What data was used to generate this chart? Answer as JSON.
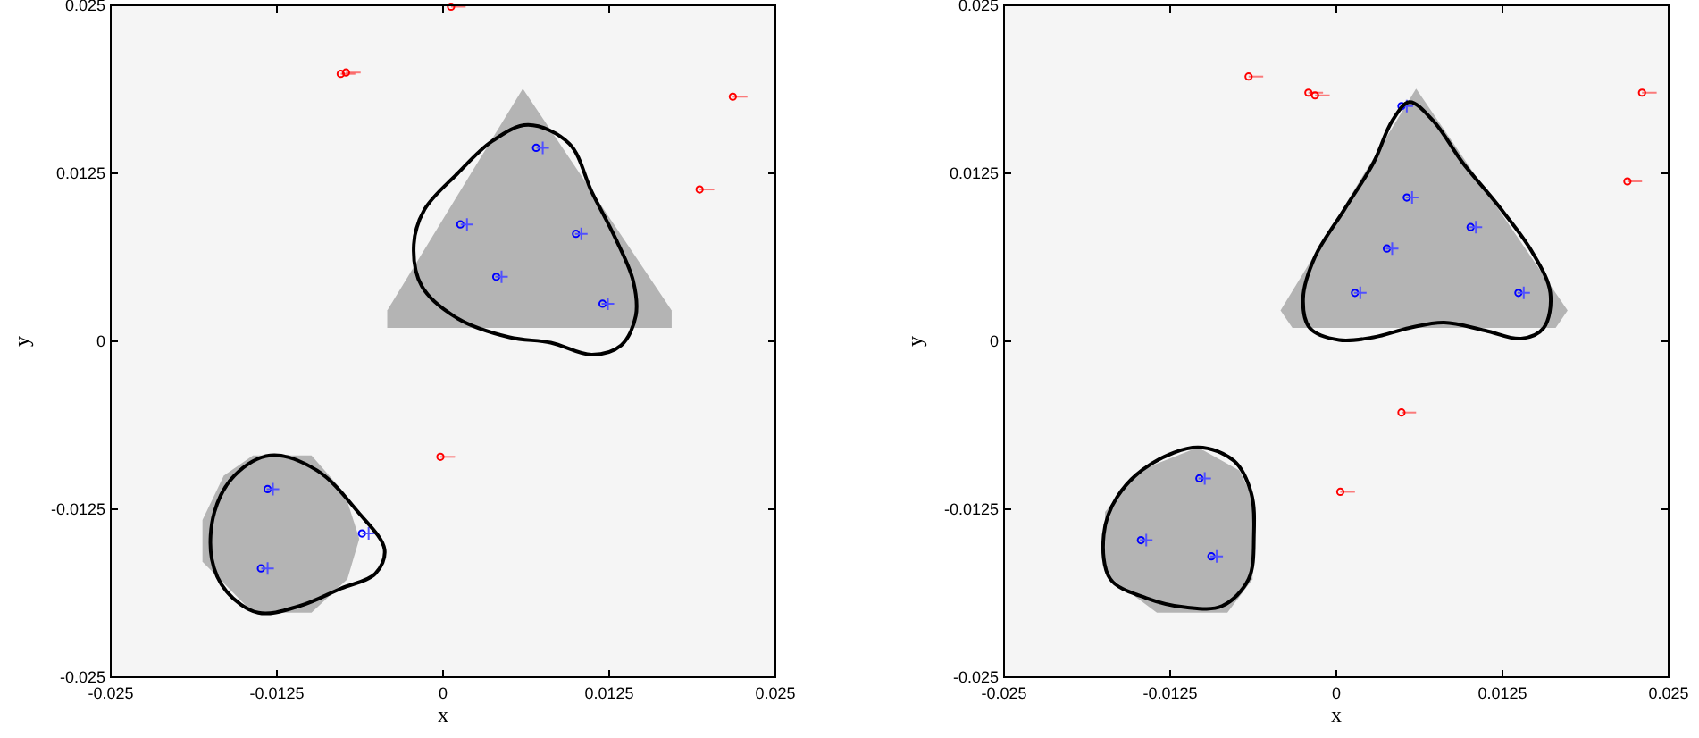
{
  "chart_data": [
    {
      "type": "scatter",
      "xlabel": "x",
      "ylabel": "y",
      "xlim": [
        -0.025,
        0.025
      ],
      "ylim": [
        -0.025,
        0.025
      ],
      "xticks": [
        -0.025,
        -0.0125,
        0,
        0.0125,
        0.025
      ],
      "yticks": [
        -0.025,
        -0.0125,
        0,
        0.0125,
        0.025
      ],
      "grid": false,
      "series": [
        {
          "type": "area",
          "color": "#b4b4b4",
          "x": [
            0.006,
            0.0172,
            0.0172,
            -0.0042,
            -0.0042
          ],
          "values": [
            0.0188,
            0.0023,
            0.001,
            0.001,
            0.0023
          ]
        },
        {
          "type": "area",
          "color": "#b4b4b4",
          "x": [
            -0.0143,
            -0.0099,
            -0.0074,
            -0.0063,
            -0.0072,
            -0.0099,
            -0.0143,
            -0.0181,
            -0.0181,
            -0.0165
          ],
          "values": [
            -0.0085,
            -0.0085,
            -0.0113,
            -0.0147,
            -0.0177,
            -0.0202,
            -0.0202,
            -0.0164,
            -0.0133,
            -0.01
          ]
        },
        {
          "marker": "circle",
          "color": "#ff0000",
          "x": [
            0.0006,
            -0.0077,
            -0.0073,
            0.0218,
            0.0193,
            -0.0002
          ],
          "values": [
            0.0249,
            0.0199,
            0.02,
            0.0182,
            0.0113,
            -0.0086
          ],
          "xerrors": [
            [
              0.0006,
              0.0017
            ],
            [
              -0.0077,
              -0.0066
            ],
            [
              -0.0073,
              -0.0062
            ],
            [
              0.0218,
              0.0229
            ],
            [
              0.0193,
              0.0204
            ],
            [
              -0.0002,
              0.0009
            ]
          ]
        },
        {
          "marker": "circle",
          "color": "#0000ff",
          "x": [
            0.007,
            0.0013,
            0.01,
            0.004,
            0.012,
            -0.0132,
            -0.0061,
            -0.0137
          ],
          "values": [
            0.0144,
            0.0087,
            0.008,
            0.0048,
            0.0028,
            -0.011,
            -0.0143,
            -0.0169
          ]
        },
        {
          "marker": "cross",
          "color": "#5050ff",
          "x": [
            0.0075,
            0.0018,
            0.0104,
            0.0044,
            0.0124,
            -0.0128,
            -0.0056,
            -0.0132
          ],
          "values": [
            0.0144,
            0.0087,
            0.008,
            0.0048,
            0.0028,
            -0.011,
            -0.0143,
            -0.0169
          ]
        }
      ]
    },
    {
      "type": "scatter",
      "xlabel": "x",
      "ylabel": "y",
      "xlim": [
        -0.025,
        0.025
      ],
      "ylim": [
        -0.025,
        0.025
      ],
      "xticks": [
        -0.025,
        -0.0125,
        0,
        0.0125,
        0.025
      ],
      "yticks": [
        -0.025,
        -0.0125,
        0,
        0.0125,
        0.025
      ],
      "grid": false,
      "series": [
        {
          "type": "area",
          "color": "#b4b4b4",
          "x": [
            0.006,
            0.0174,
            0.0165,
            -0.0033,
            -0.0042
          ],
          "values": [
            0.0188,
            0.0023,
            0.001,
            0.001,
            0.0023
          ]
        },
        {
          "type": "area",
          "color": "#b4b4b4",
          "x": [
            -0.0104,
            -0.0073,
            -0.0063,
            -0.0063,
            -0.0082,
            -0.0135,
            -0.0174,
            -0.0174,
            -0.0148
          ],
          "values": [
            -0.0079,
            -0.0096,
            -0.0116,
            -0.0177,
            -0.0202,
            -0.0202,
            -0.0173,
            -0.0127,
            -0.0096
          ]
        },
        {
          "marker": "circle",
          "color": "#ff0000",
          "x": [
            -0.0066,
            -0.0021,
            -0.0016,
            0.023,
            0.0219,
            0.0049,
            0.0003
          ],
          "values": [
            0.0197,
            0.0185,
            0.0183,
            0.0185,
            0.0119,
            -0.0053,
            -0.0112
          ],
          "xerrors": [
            [
              -0.0066,
              -0.0055
            ],
            [
              -0.0021,
              -0.001
            ],
            [
              -0.0016,
              -0.0005
            ],
            [
              0.023,
              0.0241
            ],
            [
              0.0219,
              0.023
            ],
            [
              0.0049,
              0.006
            ],
            [
              0.0003,
              0.0014
            ]
          ]
        },
        {
          "marker": "circle",
          "color": "#0000ff",
          "x": [
            0.0049,
            0.0053,
            0.0101,
            0.0038,
            0.0014,
            0.0137,
            -0.0103,
            -0.0147,
            -0.0094
          ],
          "values": [
            0.0175,
            0.0107,
            0.0085,
            0.0069,
            0.0036,
            0.0036,
            -0.0102,
            -0.0148,
            -0.016
          ]
        },
        {
          "marker": "cross",
          "color": "#5050ff",
          "x": [
            0.0053,
            0.0057,
            0.0105,
            0.0042,
            0.0018,
            0.0141,
            -0.0099,
            -0.0143,
            -0.009
          ],
          "values": [
            0.0175,
            0.0107,
            0.0085,
            0.0069,
            0.0036,
            0.0036,
            -0.0102,
            -0.0148,
            -0.016
          ]
        }
      ]
    }
  ]
}
